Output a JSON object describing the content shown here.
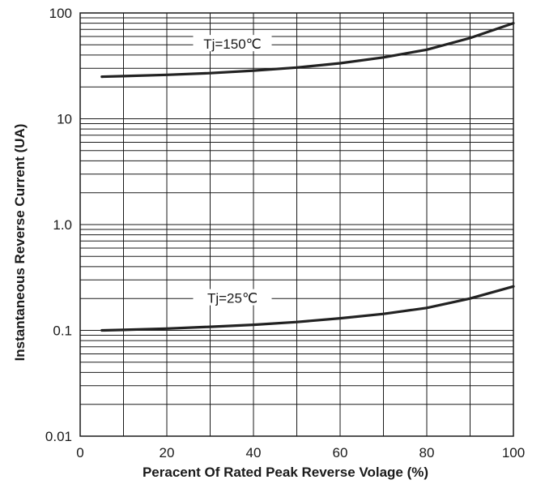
{
  "chart_data": {
    "type": "line",
    "title": "",
    "xlabel": "Peracent Of Rated Peak Reverse Volage (%)",
    "ylabel": "Instantaneous Reverse Current (UA)",
    "xlim": [
      0,
      100
    ],
    "ylim": [
      0.01,
      100
    ],
    "yscale": "log",
    "grid": true,
    "x_ticks": [
      "0",
      "20",
      "40",
      "60",
      "80",
      "100"
    ],
    "y_ticks": [
      "0.01",
      "0.1",
      "1.0",
      "10",
      "100"
    ],
    "series": [
      {
        "name": "Tj=150℃",
        "x": [
          5,
          10,
          20,
          30,
          40,
          50,
          60,
          70,
          80,
          90,
          100
        ],
        "y": [
          25,
          25.3,
          26,
          27,
          28.5,
          30.5,
          33.5,
          38,
          45,
          58,
          80
        ]
      },
      {
        "name": "Tj=25℃",
        "x": [
          5,
          10,
          20,
          30,
          40,
          50,
          60,
          70,
          80,
          90,
          100
        ],
        "y": [
          0.1,
          0.101,
          0.104,
          0.108,
          0.113,
          0.12,
          0.13,
          0.143,
          0.163,
          0.2,
          0.26
        ]
      }
    ]
  }
}
